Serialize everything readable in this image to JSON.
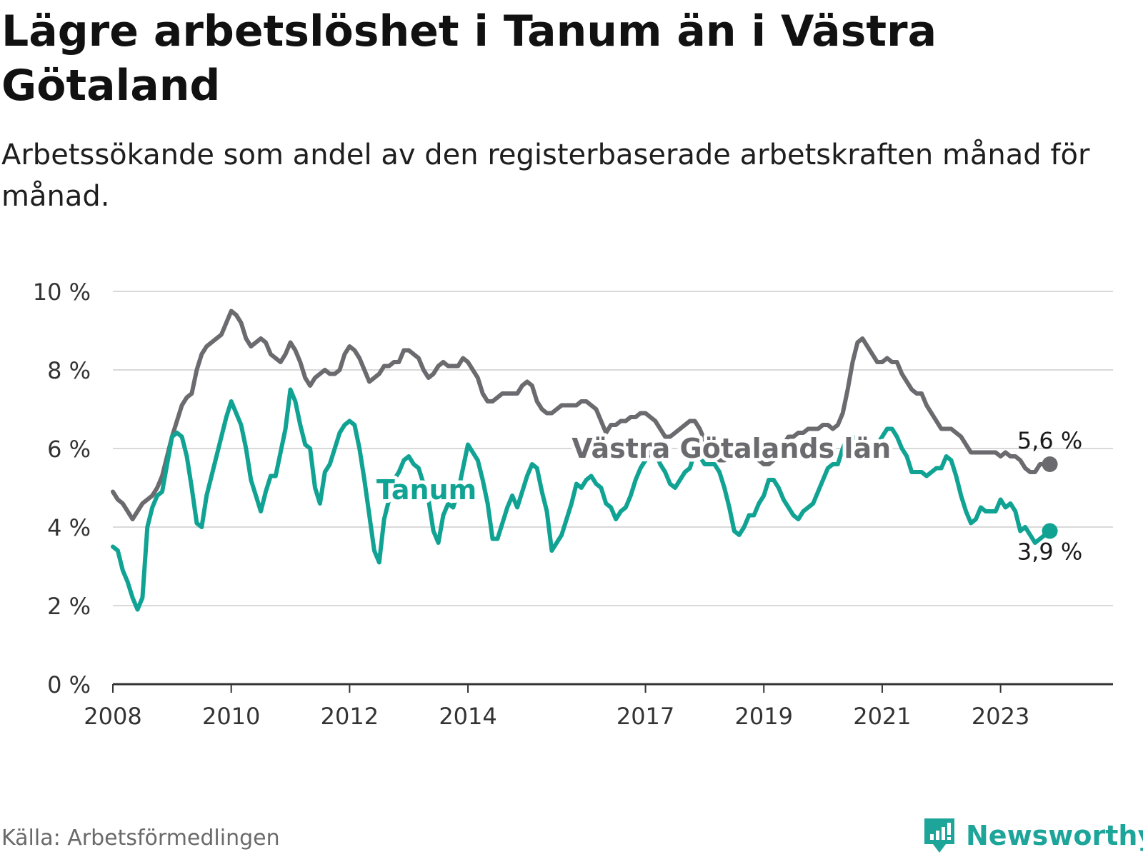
{
  "title": "Lägre arbetslöshet i Tanum än i Västra Götaland",
  "subtitle": "Arbetssökande som andel av den registerbaserade arbetskraften månad för månad.",
  "source": "Källa: Arbetsförmedlingen",
  "brand": {
    "name": "Newsworthy",
    "icon": "newsworthy-logo-icon"
  },
  "colors": {
    "tanum": "#10a393",
    "vg": "#6b6a6e",
    "grid": "#d9d9d9",
    "axis": "#333333"
  },
  "chart_data": {
    "type": "line",
    "title": "Lägre arbetslöshet i Tanum än i Västra Götaland",
    "xlabel": "",
    "ylabel": "",
    "ylim": [
      0,
      10
    ],
    "xlim": [
      2008,
      2024.9
    ],
    "y_ticks": [
      0,
      2,
      4,
      6,
      8,
      10
    ],
    "y_tick_labels": [
      "0 %",
      "2 %",
      "4 %",
      "6 %",
      "8 %",
      "10 %"
    ],
    "x_ticks": [
      2008,
      2010,
      2012,
      2014,
      2017,
      2019,
      2021,
      2023
    ],
    "x_tick_labels": [
      "2008",
      "2010",
      "2012",
      "2014",
      "2017",
      "2019",
      "2021",
      "2023"
    ],
    "x_start": 2008,
    "x_step": 0.08333,
    "series": [
      {
        "name": "Västra Götalands län",
        "key": "vg",
        "end_label": "5,6 %",
        "values": [
          4.9,
          4.7,
          4.6,
          4.4,
          4.2,
          4.4,
          4.6,
          4.7,
          4.8,
          5.0,
          5.3,
          5.8,
          6.3,
          6.7,
          7.1,
          7.3,
          7.4,
          8.0,
          8.4,
          8.6,
          8.7,
          8.8,
          8.9,
          9.2,
          9.5,
          9.4,
          9.2,
          8.8,
          8.6,
          8.7,
          8.8,
          8.7,
          8.4,
          8.3,
          8.2,
          8.4,
          8.7,
          8.5,
          8.2,
          7.8,
          7.6,
          7.8,
          7.9,
          8.0,
          7.9,
          7.9,
          8.0,
          8.4,
          8.6,
          8.5,
          8.3,
          8.0,
          7.7,
          7.8,
          7.9,
          8.1,
          8.1,
          8.2,
          8.2,
          8.5,
          8.5,
          8.4,
          8.3,
          8.0,
          7.8,
          7.9,
          8.1,
          8.2,
          8.1,
          8.1,
          8.1,
          8.3,
          8.2,
          8.0,
          7.8,
          7.4,
          7.2,
          7.2,
          7.3,
          7.4,
          7.4,
          7.4,
          7.4,
          7.6,
          7.7,
          7.6,
          7.2,
          7.0,
          6.9,
          6.9,
          7.0,
          7.1,
          7.1,
          7.1,
          7.1,
          7.2,
          7.2,
          7.1,
          7.0,
          6.7,
          6.4,
          6.6,
          6.6,
          6.7,
          6.7,
          6.8,
          6.8,
          6.9,
          6.9,
          6.8,
          6.7,
          6.5,
          6.3,
          6.3,
          6.4,
          6.5,
          6.6,
          6.7,
          6.7,
          6.5,
          6.2,
          6.0,
          5.8,
          5.7,
          5.7,
          5.8,
          5.9,
          5.9,
          6.0,
          6.0,
          5.9,
          5.7,
          5.6,
          5.6,
          5.7,
          5.9,
          6.1,
          6.3,
          6.3,
          6.4,
          6.4,
          6.5,
          6.5,
          6.5,
          6.6,
          6.6,
          6.5,
          6.6,
          6.9,
          7.5,
          8.2,
          8.7,
          8.8,
          8.6,
          8.4,
          8.2,
          8.2,
          8.3,
          8.2,
          8.2,
          7.9,
          7.7,
          7.5,
          7.4,
          7.4,
          7.1,
          6.9,
          6.7,
          6.5,
          6.5,
          6.5,
          6.4,
          6.3,
          6.1,
          5.9,
          5.9,
          5.9,
          5.9,
          5.9,
          5.9,
          5.8,
          5.9,
          5.8,
          5.8,
          5.7,
          5.5,
          5.4,
          5.4,
          5.6,
          5.6,
          5.6
        ]
      },
      {
        "name": "Tanum",
        "key": "tanum",
        "end_label": "3,9 %",
        "values": [
          3.5,
          3.4,
          2.9,
          2.6,
          2.2,
          1.9,
          2.2,
          4.0,
          4.5,
          4.8,
          4.9,
          5.6,
          6.3,
          6.4,
          6.3,
          5.8,
          5.0,
          4.1,
          4.0,
          4.8,
          5.3,
          5.8,
          6.3,
          6.8,
          7.2,
          6.9,
          6.6,
          6.0,
          5.2,
          4.8,
          4.4,
          4.9,
          5.3,
          5.3,
          5.9,
          6.5,
          7.5,
          7.2,
          6.6,
          6.1,
          6.0,
          5.0,
          4.6,
          5.4,
          5.6,
          6.0,
          6.4,
          6.6,
          6.7,
          6.6,
          6.0,
          5.2,
          4.3,
          3.4,
          3.1,
          4.2,
          4.7,
          5.2,
          5.4,
          5.7,
          5.8,
          5.6,
          5.5,
          5.1,
          4.7,
          3.9,
          3.6,
          4.3,
          4.6,
          4.5,
          4.9,
          5.5,
          6.1,
          5.9,
          5.7,
          5.2,
          4.6,
          3.7,
          3.7,
          4.1,
          4.5,
          4.8,
          4.5,
          4.9,
          5.3,
          5.6,
          5.5,
          4.9,
          4.4,
          3.4,
          3.6,
          3.8,
          4.2,
          4.6,
          5.1,
          5.0,
          5.2,
          5.3,
          5.1,
          5.0,
          4.6,
          4.5,
          4.2,
          4.4,
          4.5,
          4.8,
          5.2,
          5.5,
          5.7,
          5.9,
          5.9,
          5.6,
          5.4,
          5.1,
          5.0,
          5.2,
          5.4,
          5.5,
          5.9,
          5.8,
          5.6,
          5.6,
          5.6,
          5.4,
          5.0,
          4.5,
          3.9,
          3.8,
          4.0,
          4.3,
          4.3,
          4.6,
          4.8,
          5.2,
          5.2,
          5.0,
          4.7,
          4.5,
          4.3,
          4.2,
          4.4,
          4.5,
          4.6,
          4.9,
          5.2,
          5.5,
          5.6,
          5.6,
          6.0,
          6.3,
          6.3,
          6.1,
          5.9,
          5.8,
          5.9,
          6.1,
          6.3,
          6.5,
          6.5,
          6.3,
          6.0,
          5.8,
          5.4,
          5.4,
          5.4,
          5.3,
          5.4,
          5.5,
          5.5,
          5.8,
          5.7,
          5.3,
          4.8,
          4.4,
          4.1,
          4.2,
          4.5,
          4.4,
          4.4,
          4.4,
          4.7,
          4.5,
          4.6,
          4.4,
          3.9,
          4.0,
          3.8,
          3.6,
          3.7,
          3.8,
          3.9
        ]
      }
    ],
    "annotations": [
      {
        "text": "Tanum",
        "series": "tanum",
        "x": 2013.3,
        "y": 4.95
      },
      {
        "text": "Västra Götalands län",
        "series": "vg",
        "x": 2018.45,
        "y": 6.0
      }
    ]
  }
}
